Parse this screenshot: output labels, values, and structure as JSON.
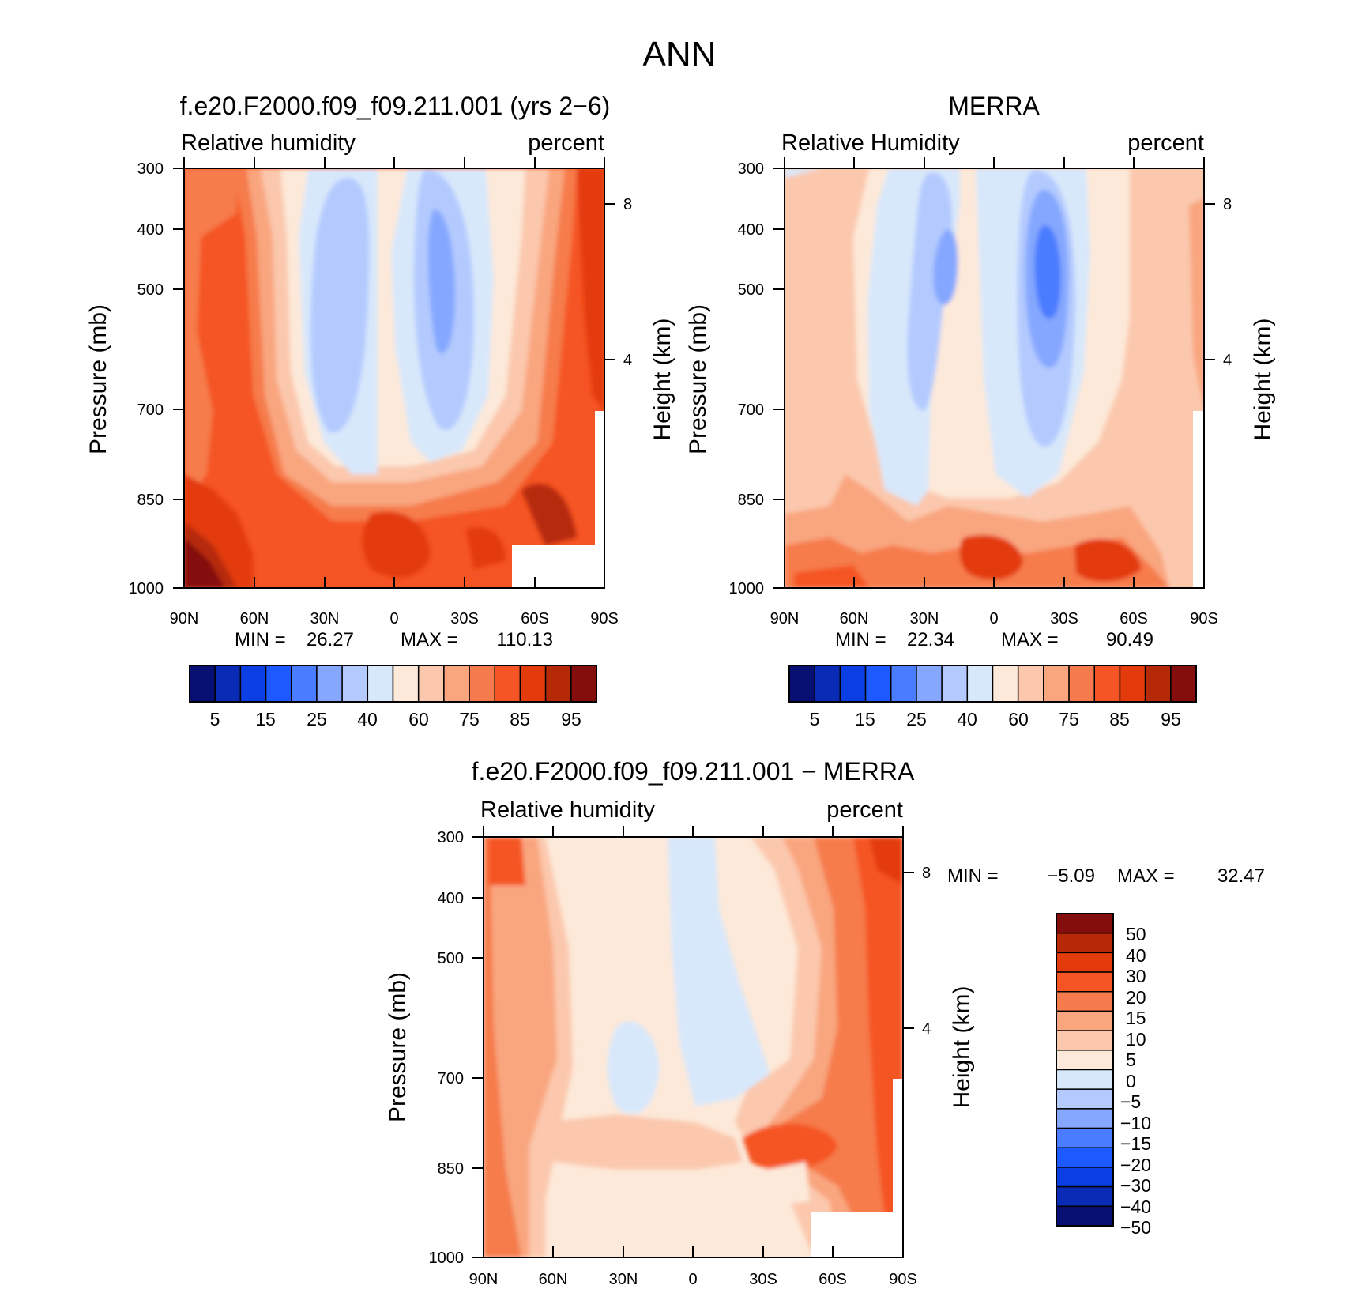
{
  "figure": {
    "title": "ANN"
  },
  "colors": {
    "levels": [
      "#080f73",
      "#0a2bb5",
      "#0b3fe3",
      "#1c5aff",
      "#4a7cff",
      "#85a7ff",
      "#b4caff",
      "#d8e8fb",
      "#fde9d9",
      "#fbc8ad",
      "#f9a67f",
      "#f67b4c",
      "#f55424",
      "#e33b0b",
      "#b62907",
      "#840e0c"
    ],
    "line": "#000000",
    "background": "#ffffff"
  },
  "chart_data": [
    {
      "type": "contour",
      "panel": "model",
      "title": "f.e20.F2000.f09_f09.211.001 (yrs 2-6)",
      "left_label": "Relative humidity",
      "right_label": "percent",
      "ylabel": "Pressure (mb)",
      "y2label": "Height (km)",
      "xlabel": "",
      "x_tick_labels": [
        "90N",
        "60N",
        "30N",
        "0",
        "30S",
        "60S",
        "90S"
      ],
      "y_tick_labels": [
        "300",
        "400",
        "500",
        "700",
        "850",
        "1000"
      ],
      "y2_tick_labels": [
        "8",
        "4"
      ],
      "xlim": [
        -90,
        90
      ],
      "ylim": [
        1000,
        300
      ],
      "y_scale": "log",
      "min_label": "MIN =",
      "min_value": "26.27",
      "max_label": "MAX =",
      "max_value": "110.13",
      "colorbar_orientation": "horizontal",
      "colorbar_labels": [
        "5",
        "15",
        "25",
        "40",
        "60",
        "75",
        "85",
        "95"
      ]
    },
    {
      "type": "contour",
      "panel": "observation",
      "title": "MERRA",
      "left_label": "Relative Humidity",
      "right_label": "percent",
      "ylabel": "Pressure (mb)",
      "y2label": "Height (km)",
      "xlabel": "",
      "x_tick_labels": [
        "90N",
        "60N",
        "30N",
        "0",
        "30S",
        "60S",
        "90S"
      ],
      "y_tick_labels": [
        "300",
        "400",
        "500",
        "700",
        "850",
        "1000"
      ],
      "y2_tick_labels": [
        "8",
        "4"
      ],
      "xlim": [
        -90,
        90
      ],
      "ylim": [
        1000,
        300
      ],
      "y_scale": "log",
      "min_label": "MIN =",
      "min_value": "22.34",
      "max_label": "MAX =",
      "max_value": "90.49",
      "colorbar_orientation": "horizontal",
      "colorbar_labels": [
        "5",
        "15",
        "25",
        "40",
        "60",
        "75",
        "85",
        "95"
      ]
    },
    {
      "type": "contour",
      "panel": "difference",
      "title": "f.e20.F2000.f09_f09.211.001 - MERRA",
      "left_label": "Relative humidity",
      "right_label": "percent",
      "ylabel": "Pressure (mb)",
      "y2label": "Height (km)",
      "xlabel": "",
      "x_tick_labels": [
        "90N",
        "60N",
        "30N",
        "0",
        "30S",
        "60S",
        "90S"
      ],
      "y_tick_labels": [
        "300",
        "400",
        "500",
        "700",
        "850",
        "1000"
      ],
      "y2_tick_labels": [
        "8",
        "4"
      ],
      "xlim": [
        -90,
        90
      ],
      "ylim": [
        1000,
        300
      ],
      "y_scale": "log",
      "min_label": "MIN =",
      "min_value": "-5.09",
      "max_label": "MAX =",
      "max_value": "32.47",
      "colorbar_orientation": "vertical",
      "colorbar_labels": [
        "50",
        "40",
        "30",
        "20",
        "15",
        "10",
        "5",
        "0",
        "-5",
        "-10",
        "-15",
        "-20",
        "-30",
        "-40",
        "-50"
      ]
    }
  ]
}
